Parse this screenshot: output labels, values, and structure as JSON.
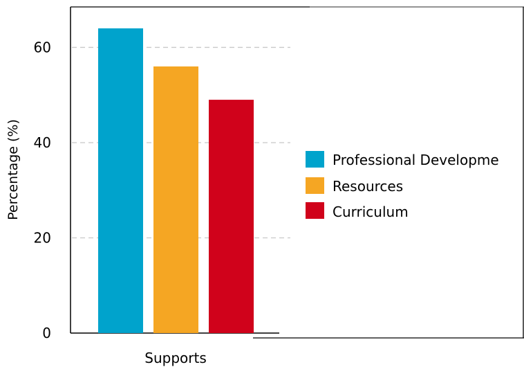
{
  "chart_data": {
    "type": "bar",
    "categories": [
      "Supports"
    ],
    "series": [
      {
        "name": "Professional Developme",
        "values": [
          64
        ],
        "color": "#00a3cc"
      },
      {
        "name": "Resources",
        "values": [
          56
        ],
        "color": "#f5a623"
      },
      {
        "name": "Curriculum",
        "values": [
          49
        ],
        "color": "#d0021b"
      }
    ],
    "title": "",
    "xlabel": "",
    "ylabel": "Percentage (%)",
    "ylim": [
      0,
      68.5
    ],
    "yticks": [
      0,
      20,
      40,
      60
    ],
    "ytick_labels": [
      "0",
      "20",
      "40",
      "60"
    ],
    "grid": "horizontal-dashed",
    "legend": "right",
    "grid_color": "#c8c8c8"
  }
}
